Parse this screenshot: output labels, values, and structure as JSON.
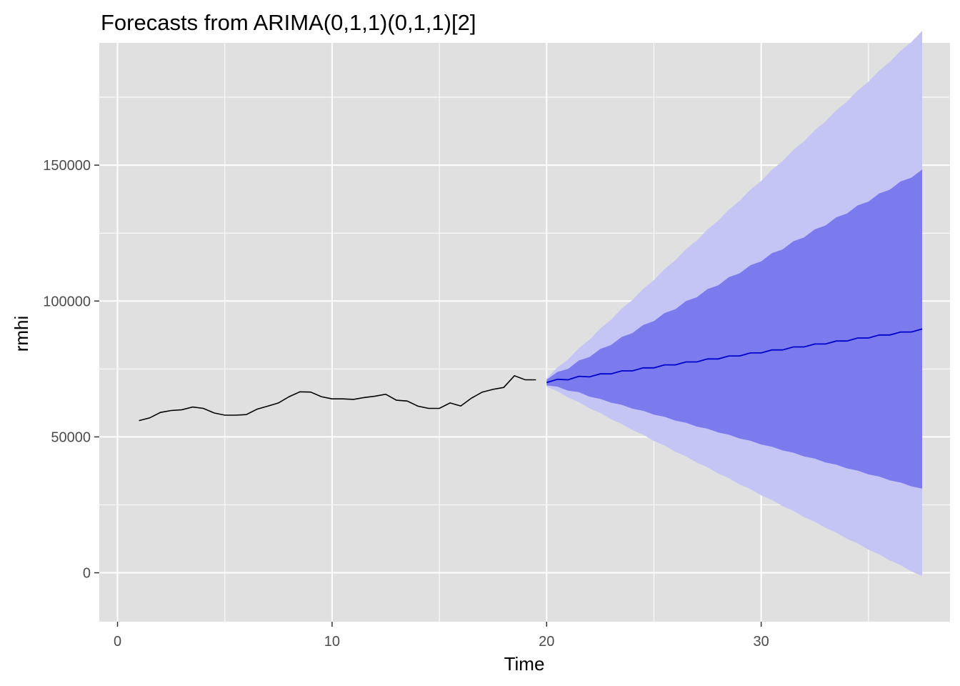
{
  "chart_data": {
    "type": "line",
    "title": "Forecasts from ARIMA(0,1,1)(0,1,1)[2]",
    "xlabel": "Time",
    "ylabel": "rmhi",
    "xlim": [
      -0.85,
      38.8
    ],
    "ylim": [
      -18000,
      195000
    ],
    "grid": true,
    "x_ticks": [
      {
        "value": 0,
        "label": "0"
      },
      {
        "value": 10,
        "label": "10"
      },
      {
        "value": 20,
        "label": "20"
      },
      {
        "value": 30,
        "label": "30"
      }
    ],
    "y_ticks": [
      {
        "value": 0,
        "label": "0"
      },
      {
        "value": 50000,
        "label": "50000"
      },
      {
        "value": 100000,
        "label": "100000"
      },
      {
        "value": 150000,
        "label": "150000"
      }
    ],
    "colors": {
      "panel": "#e0e0e0",
      "grid": "#ffffff",
      "history": "#000000",
      "forecast": "#0000cc",
      "band80": "#7b7bee",
      "band95": "#c4c4f5"
    },
    "series": [
      {
        "role": "history",
        "x": [
          1,
          1.5,
          2,
          2.5,
          3,
          3.5,
          4,
          4.5,
          5,
          5.5,
          6,
          6.5,
          7,
          7.5,
          8,
          8.5,
          9,
          9.5,
          10,
          10.5,
          11,
          11.5,
          12,
          12.5,
          13,
          13.5,
          14,
          14.5,
          15,
          15.5,
          16,
          16.5,
          17,
          17.5,
          18,
          18.5,
          19,
          19.5
        ],
        "values": [
          56000,
          57000,
          59000,
          59700,
          60000,
          61000,
          60500,
          58800,
          58000,
          58000,
          58200,
          60200,
          61300,
          62500,
          64800,
          66600,
          66500,
          64800,
          64000,
          64000,
          63800,
          64500,
          65000,
          65700,
          63500,
          63200,
          61300,
          60500,
          60500,
          62500,
          61400,
          64300,
          66500,
          67500,
          68200,
          72500,
          71000,
          71000
        ]
      },
      {
        "role": "forecast",
        "x": [
          20,
          20.5,
          21,
          21.5,
          22,
          22.5,
          23,
          23.5,
          24,
          24.5,
          25,
          25.5,
          26,
          26.5,
          27,
          27.5,
          28,
          28.5,
          29,
          29.5,
          30,
          30.5,
          31,
          31.5,
          32,
          32.5,
          33,
          33.5,
          34,
          34.5,
          35,
          35.5,
          36,
          36.5,
          37,
          37.5
        ],
        "values": [
          70000,
          71200,
          71000,
          72300,
          72100,
          73200,
          73200,
          74300,
          74300,
          75400,
          75400,
          76500,
          76500,
          77600,
          77600,
          78700,
          78700,
          79800,
          79800,
          80900,
          80900,
          82000,
          82000,
          83100,
          83100,
          84200,
          84200,
          85300,
          85300,
          86400,
          86400,
          87500,
          87500,
          88600,
          88600,
          89700
        ],
        "lo80": [
          69000,
          68500,
          67000,
          66500,
          64800,
          64000,
          62600,
          61800,
          60400,
          59600,
          58200,
          57400,
          56000,
          55200,
          53800,
          53000,
          51600,
          50800,
          49400,
          48600,
          47200,
          46400,
          45000,
          44200,
          42800,
          42000,
          40600,
          39800,
          38400,
          37600,
          36200,
          35400,
          34000,
          33200,
          31800,
          31000
        ],
        "hi80": [
          71000,
          73900,
          75000,
          78100,
          79400,
          82400,
          83800,
          86800,
          88200,
          91200,
          92600,
          95600,
          97000,
          100000,
          101400,
          104400,
          105800,
          108800,
          110200,
          113200,
          114600,
          117600,
          119000,
          122000,
          123400,
          126400,
          127800,
          130800,
          132200,
          135200,
          136600,
          139600,
          141000,
          144000,
          145400,
          148400
        ],
        "lo95": [
          68500,
          66800,
          64500,
          62800,
          60500,
          58800,
          56500,
          54800,
          52500,
          50800,
          48500,
          46800,
          44500,
          42800,
          40500,
          38800,
          36500,
          34800,
          32500,
          30800,
          28500,
          26800,
          24500,
          22800,
          20500,
          18800,
          16500,
          14800,
          12500,
          10800,
          8500,
          6800,
          4500,
          2800,
          500,
          -1200
        ],
        "hi95": [
          71500,
          75600,
          78500,
          82600,
          85800,
          89900,
          93100,
          97200,
          100400,
          104500,
          107700,
          111800,
          115000,
          119100,
          122300,
          126400,
          129600,
          133700,
          136900,
          141000,
          144200,
          148300,
          151500,
          155600,
          158800,
          162900,
          166100,
          170200,
          173400,
          177500,
          180700,
          184800,
          188000,
          192100,
          195300,
          199400
        ]
      }
    ]
  }
}
